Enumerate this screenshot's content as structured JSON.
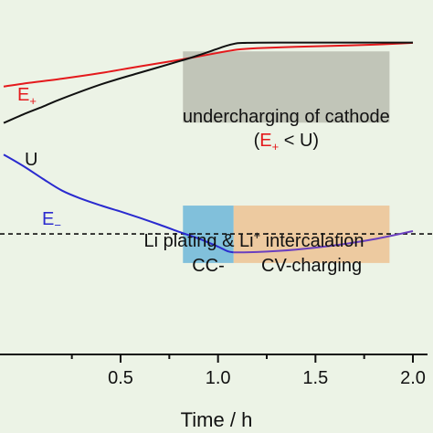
{
  "chart_data": {
    "type": "line",
    "xlabel": "Time / h",
    "xlim": [
      -0.1,
      2.05
    ],
    "ylim": [
      0,
      1
    ],
    "x_ticks": [
      0.5,
      1.0,
      1.5,
      2.0
    ],
    "x_tick_labels": [
      "0.5",
      "1.0",
      "1.5",
      "2.0"
    ],
    "series": [
      {
        "name": "E+",
        "color": "#e4191c",
        "points": [
          [
            -0.1,
            0.756
          ],
          [
            0.0,
            0.764
          ],
          [
            0.2,
            0.778
          ],
          [
            0.4,
            0.794
          ],
          [
            0.6,
            0.813
          ],
          [
            0.8,
            0.831
          ],
          [
            1.0,
            0.851
          ],
          [
            1.1,
            0.86
          ],
          [
            1.2,
            0.864
          ],
          [
            1.4,
            0.868
          ],
          [
            1.6,
            0.871
          ],
          [
            1.8,
            0.874
          ],
          [
            2.0,
            0.879
          ]
        ]
      },
      {
        "name": "U",
        "color": "#111111",
        "points": [
          [
            -0.1,
            0.653
          ],
          [
            0.0,
            0.677
          ],
          [
            0.1,
            0.699
          ],
          [
            0.2,
            0.722
          ],
          [
            0.4,
            0.762
          ],
          [
            0.6,
            0.795
          ],
          [
            0.8,
            0.827
          ],
          [
            0.9,
            0.844
          ],
          [
            1.0,
            0.863
          ],
          [
            1.05,
            0.872
          ],
          [
            1.1,
            0.878
          ],
          [
            1.15,
            0.879
          ],
          [
            1.3,
            0.88
          ],
          [
            1.6,
            0.88
          ],
          [
            1.8,
            0.88
          ],
          [
            2.0,
            0.88
          ]
        ]
      },
      {
        "name": "E−",
        "color": "#2a2acf",
        "color_after_cc": "#6a3fbf",
        "points": [
          [
            -0.1,
            0.564
          ],
          [
            0.0,
            0.532
          ],
          [
            0.1,
            0.496
          ],
          [
            0.2,
            0.462
          ],
          [
            0.3,
            0.439
          ],
          [
            0.4,
            0.42
          ],
          [
            0.5,
            0.403
          ],
          [
            0.6,
            0.385
          ],
          [
            0.7,
            0.366
          ],
          [
            0.8,
            0.346
          ],
          [
            0.9,
            0.327
          ],
          [
            1.0,
            0.304
          ],
          [
            1.05,
            0.291
          ],
          [
            1.08,
            0.288
          ],
          [
            1.2,
            0.289
          ],
          [
            1.4,
            0.296
          ],
          [
            1.6,
            0.308
          ],
          [
            1.8,
            0.325
          ],
          [
            2.0,
            0.348
          ]
        ]
      }
    ],
    "reference_line": {
      "y": 0.34,
      "style": "dashed"
    },
    "regions": [
      {
        "name": "undercharging",
        "x0": 0.82,
        "x1": 1.88,
        "y0": 0.654,
        "y1": 0.855,
        "color": "#9e9e92",
        "opacity": 0.55,
        "line1": "undercharging of cathode",
        "line2_prefix": "(",
        "line2_symbol": "E",
        "line2_symbol_sub": "+",
        "line2_rest": " < U)"
      },
      {
        "name": "cc",
        "x0": 0.82,
        "x1": 1.08,
        "y0": 0.258,
        "y1": 0.42,
        "color": "#6fb6d8",
        "opacity": 0.85,
        "label": "CC-"
      },
      {
        "name": "cv",
        "x0": 1.08,
        "x1": 1.88,
        "y0": 0.258,
        "y1": 0.42,
        "color": "#eebf8f",
        "opacity": 0.8,
        "label": "CV-charging"
      }
    ],
    "annotations": {
      "plating_title_main": "Li plating & Li",
      "plating_title_sup": "+",
      "plating_title_rest": " intercalation",
      "e_plus_label": "E",
      "e_plus_sub": "+",
      "u_label": "U",
      "e_minus_label": "E",
      "e_minus_sub": "−"
    }
  }
}
